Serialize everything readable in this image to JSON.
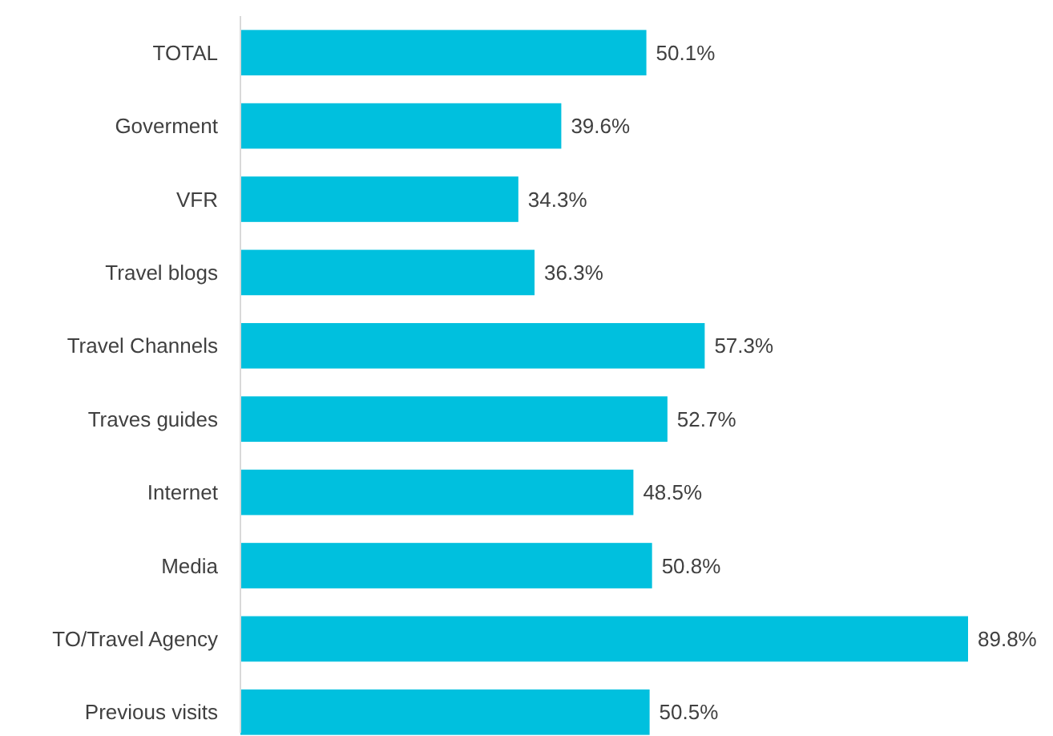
{
  "chart_data": {
    "type": "bar",
    "orientation": "horizontal",
    "data_labels": true,
    "categories": [
      "TOTAL",
      "Goverment",
      "VFR",
      "Travel blogs",
      "Travel Channels",
      "Traves guides",
      "Internet",
      "Media",
      "TO/Travel Agency",
      "Previous visits"
    ],
    "values": [
      50.1,
      39.6,
      34.3,
      36.3,
      57.3,
      52.7,
      48.5,
      50.8,
      89.8,
      50.5
    ],
    "value_labels": [
      "50.1%",
      "39.6%",
      "34.3%",
      "36.3%",
      "57.3%",
      "52.7%",
      "48.5%",
      "50.8%",
      "89.8%",
      "50.5%"
    ],
    "color": "#00c0de"
  }
}
